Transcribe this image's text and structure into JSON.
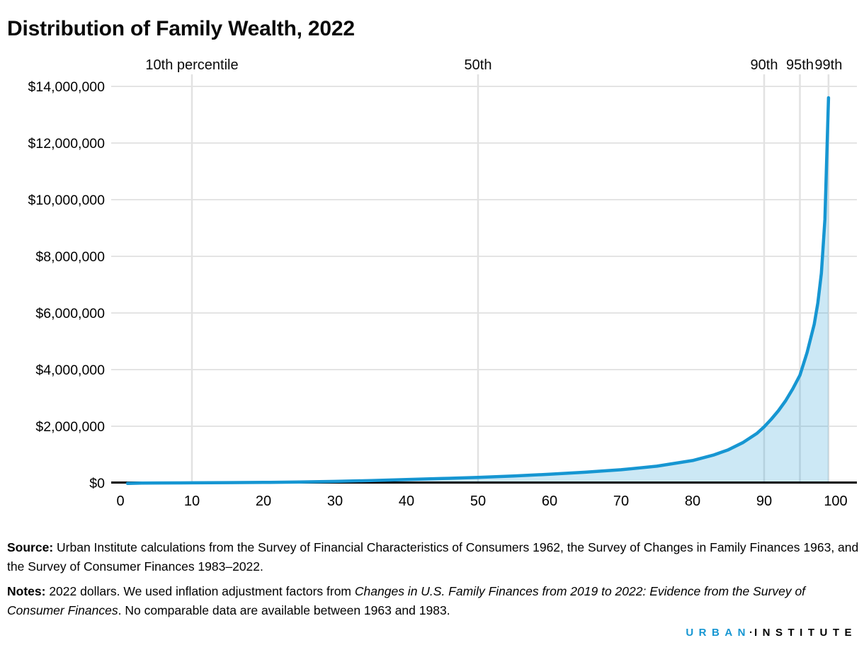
{
  "title": "Distribution of Family Wealth, 2022",
  "chart_data": {
    "type": "area",
    "title": "Distribution of Family Wealth, 2022",
    "xlabel": "",
    "ylabel": "",
    "xlim": [
      0,
      100
    ],
    "ylim": [
      0,
      14000000
    ],
    "grid": true,
    "line_color": "#1696d2",
    "fill_color": "#cfe8f3",
    "gridline_color": "#dcdcdc",
    "axis_color": "#000000",
    "x": [
      1,
      3,
      5,
      8,
      10,
      15,
      20,
      25,
      30,
      35,
      40,
      45,
      50,
      55,
      60,
      65,
      70,
      75,
      80,
      83,
      85,
      87,
      89,
      90,
      91,
      92,
      93,
      94,
      95,
      96,
      97,
      97.5,
      98,
      98.5,
      99
    ],
    "values": [
      -18000,
      -8000,
      -3000,
      500,
      2000,
      9000,
      17000,
      31000,
      52000,
      82000,
      120000,
      155000,
      193000,
      245000,
      305000,
      378000,
      465000,
      590000,
      790000,
      990000,
      1170000,
      1420000,
      1750000,
      1980000,
      2250000,
      2550000,
      2900000,
      3320000,
      3800000,
      4600000,
      5600000,
      6350000,
      7400000,
      9300000,
      13600000
    ],
    "x_tick_values": [
      0,
      10,
      20,
      30,
      40,
      50,
      60,
      70,
      80,
      90,
      100
    ],
    "x_tick_labels": [
      "0",
      "10",
      "20",
      "30",
      "40",
      "50",
      "60",
      "70",
      "80",
      "90",
      "100"
    ],
    "y_tick_values": [
      0,
      2000000,
      4000000,
      6000000,
      8000000,
      10000000,
      12000000,
      14000000
    ],
    "y_tick_labels": [
      "$0",
      "$2,000,000",
      "$4,000,000",
      "$6,000,000",
      "$8,000,000",
      "$10,000,000",
      "$12,000,000",
      "$14,000,000"
    ],
    "annotations": [
      {
        "label": "10th percentile",
        "x": 10
      },
      {
        "label": "50th",
        "x": 50
      },
      {
        "label": "90th",
        "x": 90
      },
      {
        "label": "95th",
        "x": 95
      },
      {
        "label": "99th",
        "x": 99
      }
    ],
    "gridline_x_values": [
      10,
      50,
      90,
      95,
      99
    ]
  },
  "footer": {
    "source_label": "Source:",
    "source_text": " Urban Institute calculations from the Survey of Financial Characteristics of Consumers 1962, the Survey of Changes in Family Finances 1963, and the Survey of Consumer Finances 1983–2022.",
    "notes_label": "Notes:",
    "notes_text_before_italic": " 2022 dollars. We used inflation adjustment factors from ",
    "notes_italic": "Changes in U.S. Family Finances from 2019 to 2022: Evidence from the Survey of Consumer Finances",
    "notes_text_after_italic": ". No comparable data are available between 1963 and 1983."
  },
  "logo": {
    "word1": "URBAN",
    "separator": "·",
    "word2": "INSTITUTE",
    "word1_color": "#1696d2"
  }
}
